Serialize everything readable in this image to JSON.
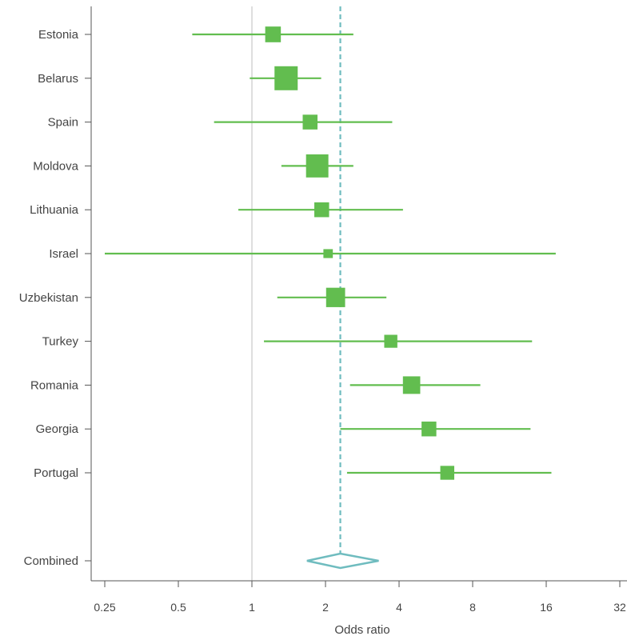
{
  "chart_data": {
    "type": "forest",
    "xlabel": "Odds ratio",
    "x_scale": "log2",
    "xlim": [
      0.22,
      32
    ],
    "x_ticks": [
      {
        "value": 0.25,
        "label": "0.25"
      },
      {
        "value": 0.5,
        "label": "0.5"
      },
      {
        "value": 1,
        "label": "1"
      },
      {
        "value": 2,
        "label": "2"
      },
      {
        "value": 4,
        "label": "4"
      },
      {
        "value": 8,
        "label": "8"
      },
      {
        "value": 16,
        "label": "16"
      },
      {
        "value": 32,
        "label": "32"
      }
    ],
    "reference_line": 1,
    "studies": [
      {
        "label": "Estonia",
        "or": 1.22,
        "ci_low": 0.57,
        "ci_high": 2.6,
        "weight": 0.55
      },
      {
        "label": "Belarus",
        "or": 1.38,
        "ci_low": 0.98,
        "ci_high": 1.92,
        "weight": 1.0
      },
      {
        "label": "Spain",
        "or": 1.73,
        "ci_low": 0.7,
        "ci_high": 3.75,
        "weight": 0.5
      },
      {
        "label": "Moldova",
        "or": 1.85,
        "ci_low": 1.32,
        "ci_high": 2.6,
        "weight": 0.95
      },
      {
        "label": "Lithuania",
        "or": 1.93,
        "ci_low": 0.88,
        "ci_high": 4.15,
        "weight": 0.5
      },
      {
        "label": "Israel",
        "or": 2.05,
        "ci_low": 0.25,
        "ci_high": 17.5,
        "weight": 0.18
      },
      {
        "label": "Uzbekistan",
        "or": 2.2,
        "ci_low": 1.27,
        "ci_high": 3.55,
        "weight": 0.75
      },
      {
        "label": "Turkey",
        "or": 3.7,
        "ci_low": 1.12,
        "ci_high": 14.0,
        "weight": 0.4
      },
      {
        "label": "Romania",
        "or": 4.5,
        "ci_low": 2.52,
        "ci_high": 8.6,
        "weight": 0.65
      },
      {
        "label": "Georgia",
        "or": 5.3,
        "ci_low": 2.3,
        "ci_high": 13.8,
        "weight": 0.5
      },
      {
        "label": "Portugal",
        "or": 6.3,
        "ci_low": 2.45,
        "ci_high": 16.8,
        "weight": 0.45
      }
    ],
    "combined": {
      "label": "Combined",
      "or": 2.3,
      "ci_low": 1.68,
      "ci_high": 3.3
    },
    "colors": {
      "study": "#62bd4f",
      "combined": "#6fbcbf",
      "reference": "#c8c8c8",
      "axis": "#555555",
      "text": "#444444"
    }
  }
}
